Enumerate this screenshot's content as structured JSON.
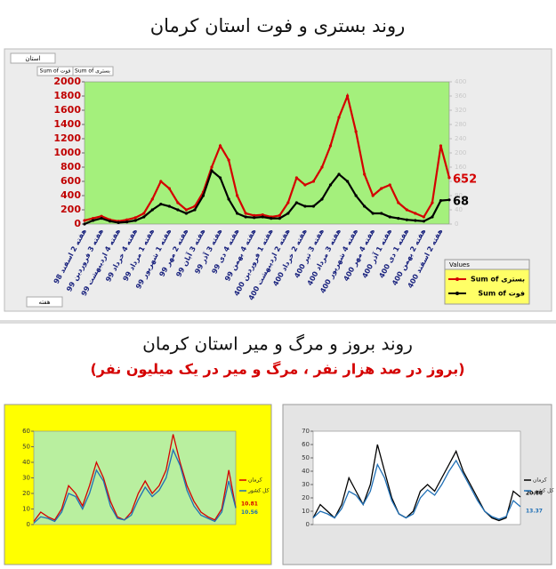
{
  "title": "روند بستری و فوت استان کرمان",
  "section_title": "روند بروز و مرگ و میر استان کرمان",
  "section_subtitle": "(بروز در صد هزار نفر ، مرگ و میر در یک میلیون نفر)",
  "field_buttons": [
    "استان",
    "Sum of فوت",
    "Sum of بستری",
    "هفته"
  ],
  "chart_data": [
    {
      "type": "line",
      "legend_title": "Values",
      "categories": [
        "هفته 2 اسفند 98",
        null,
        "هفته 3 فروردین 99",
        null,
        "هفته 4 اردیبهشت 99",
        null,
        "هفته 4 خرداد 99",
        null,
        "هفته 1 مرداد 99",
        null,
        "هفته 1 شهریور 99",
        null,
        "هفته 2 مهر 99",
        null,
        "هفته 3 آبان 99",
        null,
        "هفته 3 آذر 99",
        null,
        "هفته 4 دی 99",
        null,
        "هفته 4 بهمن 99",
        null,
        "هفته 1 فروردین 400",
        null,
        "هفته 2 اردیبهشت 400",
        null,
        "هفته 2 خرداد 400",
        null,
        "هفته 3 تیر 400",
        null,
        "هفته 3 مرداد 400",
        null,
        "هفته 4 شهریور 400",
        null,
        "هفته 4 مهر 400",
        null,
        "هفته 1 آذر 400",
        null,
        "هفته 1 دی 400",
        null,
        "هفته 2 بهمن 400",
        null,
        "هفته 2 اسفند 400",
        null
      ],
      "series": [
        {
          "name": "Sum of بستری",
          "color": "#d40000",
          "values": [
            50,
            80,
            110,
            60,
            40,
            60,
            90,
            150,
            350,
            600,
            500,
            300,
            200,
            250,
            450,
            800,
            1100,
            900,
            400,
            150,
            120,
            130,
            100,
            120,
            300,
            650,
            550,
            600,
            800,
            1100,
            1500,
            1800,
            1300,
            700,
            400,
            500,
            550,
            300,
            200,
            150,
            100,
            300,
            1100,
            652
          ]
        },
        {
          "name": "Sum of فوت",
          "color": "#000000",
          "axis": "y2",
          "values": [
            0,
            10,
            16,
            8,
            4,
            6,
            10,
            20,
            40,
            56,
            50,
            40,
            30,
            40,
            80,
            150,
            130,
            70,
            30,
            20,
            18,
            20,
            16,
            16,
            30,
            60,
            50,
            50,
            70,
            110,
            140,
            120,
            80,
            50,
            30,
            30,
            20,
            16,
            12,
            10,
            8,
            20,
            66,
            68
          ]
        }
      ],
      "ylim": [
        0,
        2000
      ],
      "yticks": [
        0,
        200,
        400,
        600,
        800,
        1000,
        1200,
        1400,
        1600,
        1800,
        2000
      ],
      "y2lim": [
        0,
        400
      ],
      "y2ticks": [
        0,
        40,
        80,
        120,
        160,
        200,
        240,
        280,
        320,
        360,
        400
      ],
      "grid": false,
      "legend": "lower-right"
    },
    {
      "type": "line",
      "series": [
        {
          "name": "کرمان",
          "color": "#d40000",
          "values": [
            2,
            8,
            5,
            3,
            10,
            25,
            20,
            12,
            25,
            40,
            30,
            15,
            5,
            3,
            8,
            20,
            28,
            20,
            25,
            35,
            58,
            40,
            25,
            15,
            8,
            5,
            3,
            10,
            35,
            10.81
          ]
        },
        {
          "name": "کل کشور",
          "color": "#1f6fb5",
          "values": [
            1,
            5,
            4,
            2,
            8,
            20,
            18,
            10,
            20,
            35,
            28,
            12,
            4,
            3,
            6,
            16,
            24,
            18,
            22,
            30,
            48,
            38,
            22,
            12,
            6,
            4,
            2,
            8,
            28,
            10.56
          ]
        }
      ],
      "ylim": [
        0,
        60
      ],
      "yticks": [
        0,
        10,
        20,
        30,
        40,
        50,
        60
      ],
      "grid": false,
      "legend": "right"
    },
    {
      "type": "line",
      "series": [
        {
          "name": "کرمان",
          "color": "#000000",
          "values": [
            5,
            15,
            10,
            5,
            15,
            35,
            25,
            15,
            30,
            60,
            40,
            20,
            8,
            5,
            10,
            25,
            30,
            25,
            35,
            45,
            55,
            40,
            30,
            20,
            10,
            5,
            3,
            5,
            25,
            20.66
          ]
        },
        {
          "name": "کل کشور",
          "color": "#1f6fb5",
          "values": [
            5,
            10,
            8,
            5,
            12,
            25,
            22,
            15,
            25,
            45,
            35,
            18,
            8,
            5,
            8,
            20,
            26,
            22,
            30,
            40,
            48,
            38,
            28,
            18,
            10,
            6,
            4,
            6,
            18,
            13.37
          ]
        }
      ],
      "ylim": [
        0,
        70
      ],
      "yticks": [
        0,
        10,
        20,
        30,
        40,
        50,
        60,
        70
      ],
      "grid": false,
      "legend": "right"
    }
  ]
}
